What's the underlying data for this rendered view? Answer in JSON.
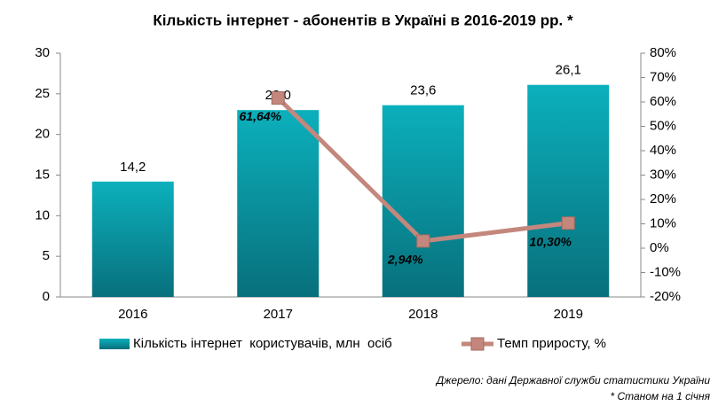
{
  "chart_data": {
    "type": "bar",
    "title": "Кількість інтернет - абонентів в Україні в 2016-2019 рр. *",
    "categories": [
      "2016",
      "2017",
      "2018",
      "2019"
    ],
    "series": [
      {
        "name": "Кількість інтернет  користувачів, млн  осіб",
        "color": "#0a9aa6",
        "values": [
          14.2,
          23.0,
          23.6,
          26.1
        ],
        "value_labels": [
          "14,2",
          "23,0",
          "23,6",
          "26,1"
        ]
      },
      {
        "name": "Темп приросту, %",
        "type": "line",
        "axis": "y2",
        "color": "#c4877d",
        "values": [
          null,
          61.64,
          2.94,
          10.3
        ],
        "value_labels": [
          null,
          "61,64%",
          "2,94%",
          "10,30%"
        ]
      }
    ],
    "ylim": [
      0,
      30
    ],
    "yticks": [
      0,
      5,
      10,
      15,
      20,
      25,
      30
    ],
    "y2lim": [
      -20,
      80
    ],
    "y2ticks": [
      {
        "value": -20,
        "label": "-20%"
      },
      {
        "value": -10,
        "label": "-10%"
      },
      {
        "value": 0,
        "label": "0%"
      },
      {
        "value": 10,
        "label": "10%"
      },
      {
        "value": 20,
        "label": "20%"
      },
      {
        "value": 30,
        "label": "30%"
      },
      {
        "value": 40,
        "label": "40%"
      },
      {
        "value": 50,
        "label": "50%"
      },
      {
        "value": 60,
        "label": "60%"
      },
      {
        "value": 70,
        "label": "70%"
      },
      {
        "value": 80,
        "label": "80%"
      }
    ],
    "grid": false,
    "source": "Джерело: дані Державної служби статистики України",
    "note": "* Станом на 1 січня"
  }
}
